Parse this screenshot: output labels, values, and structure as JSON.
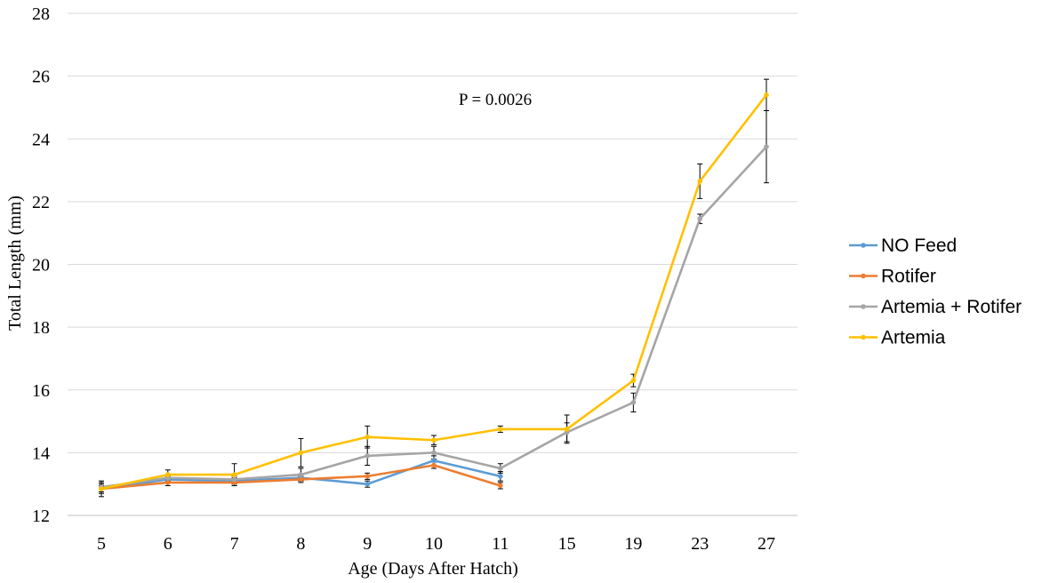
{
  "chart_data": {
    "type": "line",
    "title": "",
    "xlabel": "Age (Days After Hatch)",
    "ylabel": "Total Length (mm)",
    "ylim": [
      12,
      28
    ],
    "yticks": [
      12,
      14,
      16,
      18,
      20,
      22,
      24,
      26,
      28
    ],
    "categories": [
      "5",
      "6",
      "7",
      "8",
      "9",
      "10",
      "11",
      "15",
      "19",
      "23",
      "27"
    ],
    "annotation": "P = 0.0026",
    "grid": true,
    "legend_position": "right",
    "series": [
      {
        "name": "NO Feed",
        "color": "#5b9bd5",
        "values": [
          12.85,
          13.15,
          13.1,
          13.2,
          13.0,
          13.75,
          13.25,
          null,
          null,
          null,
          null
        ],
        "errors": [
          0.15,
          0.1,
          0.1,
          0.1,
          0.1,
          0.15,
          0.15,
          null,
          null,
          null,
          null
        ]
      },
      {
        "name": "Rotifer",
        "color": "#ed7d31",
        "values": [
          12.85,
          13.05,
          13.05,
          13.15,
          13.25,
          13.6,
          12.95,
          null,
          null,
          null,
          null
        ],
        "errors": [
          0.1,
          0.1,
          0.1,
          0.1,
          0.1,
          0.1,
          0.1,
          null,
          null,
          null,
          null
        ]
      },
      {
        "name": "Artemia +  Rotifer",
        "color": "#a5a5a5",
        "values": [
          12.9,
          13.2,
          13.15,
          13.3,
          13.9,
          14.0,
          13.5,
          14.65,
          15.6,
          21.45,
          23.75
        ],
        "errors": [
          0.15,
          0.1,
          0.1,
          0.2,
          0.3,
          0.2,
          0.15,
          0.3,
          0.3,
          0.15,
          1.15
        ]
      },
      {
        "name": "Artemia",
        "color": "#ffc000",
        "values": [
          12.85,
          13.3,
          13.3,
          14.0,
          14.5,
          14.4,
          14.75,
          14.75,
          16.3,
          22.65,
          25.4
        ],
        "errors": [
          0.25,
          0.15,
          0.35,
          0.45,
          0.35,
          0.15,
          0.1,
          0.45,
          0.2,
          0.55,
          0.5
        ]
      }
    ]
  }
}
